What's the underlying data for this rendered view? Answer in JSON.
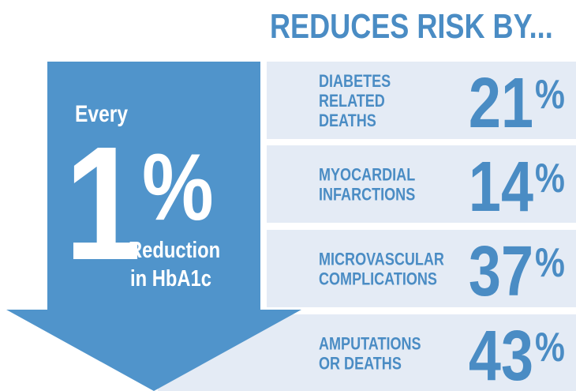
{
  "header": {
    "title": "REDUCES RISK BY..."
  },
  "arrow": {
    "every": "Every",
    "number": "1",
    "unit": "%",
    "reduction": "Reduction",
    "target": "in HbA1c"
  },
  "rows": [
    {
      "lines": [
        "DIABETES",
        "RELATED",
        "DEATHS"
      ],
      "value": "21",
      "unit": "%"
    },
    {
      "lines": [
        "MYOCARDIAL",
        "INFARCTIONS"
      ],
      "value": "14",
      "unit": "%"
    },
    {
      "lines": [
        "MICROVASCULAR",
        "COMPLICATIONS"
      ],
      "value": "37",
      "unit": "%"
    },
    {
      "lines": [
        "AMPUTATIONS",
        "OR DEATHS"
      ],
      "value": "43",
      "unit": "%"
    }
  ]
}
